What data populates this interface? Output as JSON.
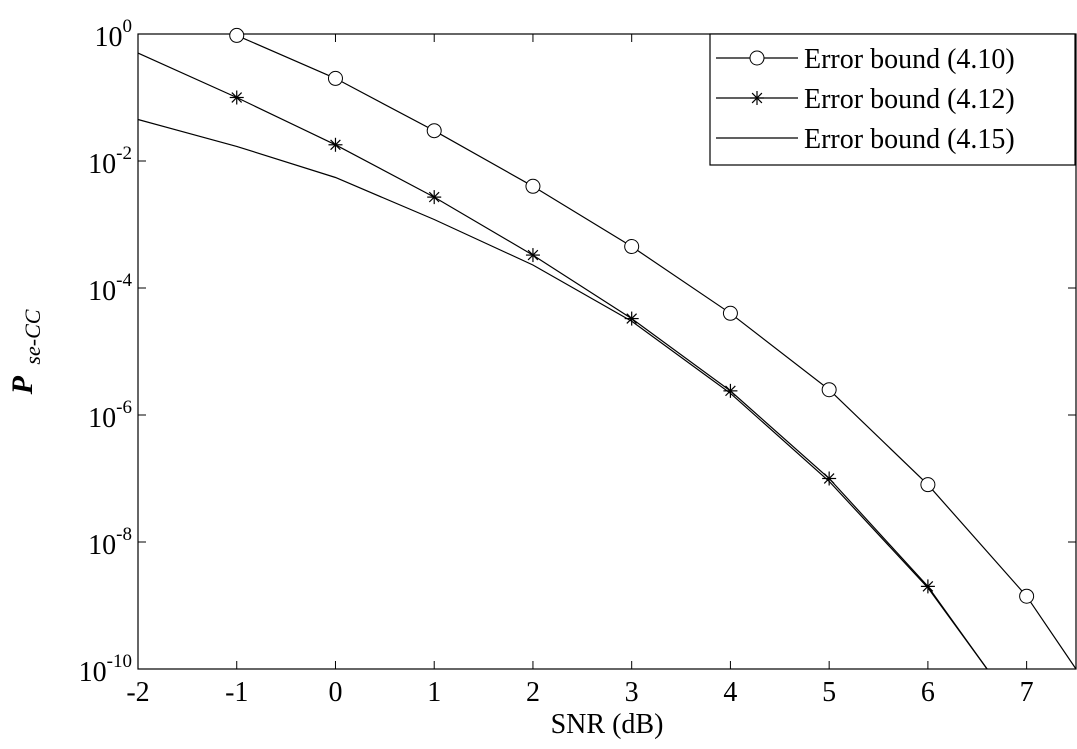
{
  "chart_data": {
    "type": "line",
    "title": "",
    "xlabel": "SNR (dB)",
    "ylabel": {
      "main": "P",
      "subscript": "se-CC"
    },
    "yscale": "log",
    "xlim": [
      -2,
      7.5
    ],
    "ylim": [
      1e-10,
      1
    ],
    "xticks": [
      {
        "value": -2,
        "label": "-2"
      },
      {
        "value": -1,
        "label": "-1"
      },
      {
        "value": 0,
        "label": "0"
      },
      {
        "value": 1,
        "label": "1"
      },
      {
        "value": 2,
        "label": "2"
      },
      {
        "value": 3,
        "label": "3"
      },
      {
        "value": 4,
        "label": "4"
      },
      {
        "value": 5,
        "label": "5"
      },
      {
        "value": 6,
        "label": "6"
      },
      {
        "value": 7,
        "label": "7"
      }
    ],
    "yticks": [
      {
        "exp": 0,
        "base": "10",
        "sup": "0"
      },
      {
        "exp": -2,
        "base": "10",
        "sup": "-2"
      },
      {
        "exp": -4,
        "base": "10",
        "sup": "-4"
      },
      {
        "exp": -6,
        "base": "10",
        "sup": "-6"
      },
      {
        "exp": -8,
        "base": "10",
        "sup": "-8"
      },
      {
        "exp": -10,
        "base": "10",
        "sup": "-10"
      }
    ],
    "grid": false,
    "legend_position": "top-right",
    "series": [
      {
        "name": "Error bound (4.10)",
        "marker": "circle",
        "color": "#000000",
        "x": [
          -1,
          0,
          1,
          2,
          3,
          4,
          5,
          6,
          7,
          7.5
        ],
        "y": [
          0.95,
          0.2,
          0.03,
          0.004,
          0.00045,
          4e-05,
          2.5e-06,
          8e-08,
          1.4e-09,
          1e-10
        ],
        "marker_x": [
          -1,
          0,
          1,
          2,
          3,
          4,
          5,
          6,
          7
        ]
      },
      {
        "name": "Error bound (4.12)",
        "marker": "star",
        "color": "#000000",
        "x": [
          -2,
          -1,
          0,
          1,
          2,
          3,
          4,
          5,
          6,
          6.6
        ],
        "y": [
          0.5,
          0.1,
          0.018,
          0.0027,
          0.00033,
          3.3e-05,
          2.4e-06,
          1e-07,
          2e-09,
          1e-10
        ],
        "marker_x": [
          -1,
          0,
          1,
          2,
          3,
          4,
          5,
          6
        ]
      },
      {
        "name": "Error bound (4.15)",
        "marker": "none",
        "color": "#000000",
        "x": [
          -2,
          -1,
          0,
          1,
          2,
          3,
          4,
          5,
          6,
          6.6
        ],
        "y": [
          0.045,
          0.017,
          0.0055,
          0.0012,
          0.00023,
          3e-05,
          2.2e-06,
          9e-08,
          1.9e-09,
          1e-10
        ],
        "marker_x": []
      }
    ]
  }
}
